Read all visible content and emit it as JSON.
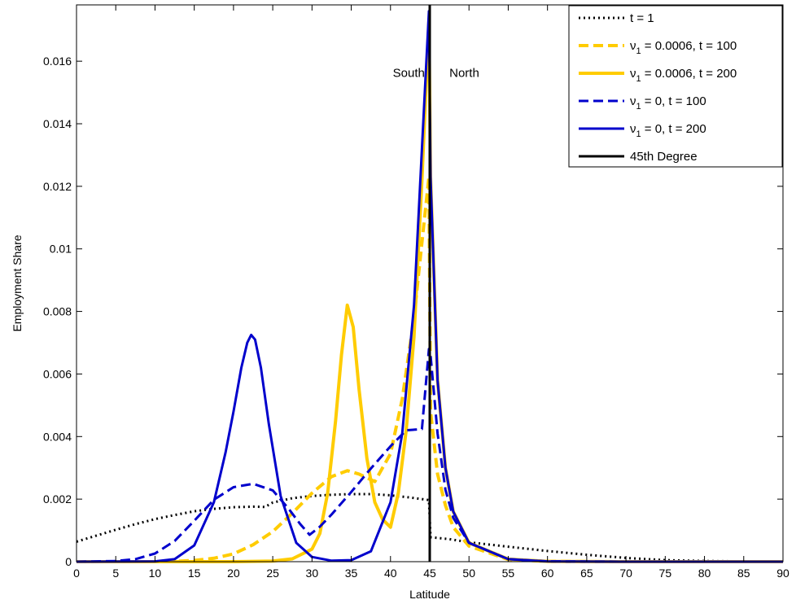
{
  "chart_data": {
    "type": "line",
    "title": "",
    "xlabel": "Latitude",
    "ylabel": "Employment Share",
    "xlim": [
      0,
      90
    ],
    "ylim": [
      0,
      0.0178
    ],
    "xticks": [
      0,
      5,
      10,
      15,
      20,
      25,
      30,
      35,
      40,
      45,
      50,
      55,
      60,
      65,
      70,
      75,
      80,
      85,
      90
    ],
    "yticks": [
      0,
      0.002,
      0.004,
      0.006,
      0.008,
      0.01,
      0.012,
      0.014,
      0.016
    ],
    "ytick_labels": [
      "0",
      "0.002",
      "0.004",
      "0.006",
      "0.008",
      "0.01",
      "0.012",
      "0.014",
      "0.016"
    ],
    "grid": false,
    "legend_position": "top-right",
    "annotations": [
      {
        "text": "South",
        "x": 40.3,
        "y": 0.0155
      },
      {
        "text": "North",
        "x": 47.5,
        "y": 0.0155
      }
    ],
    "vline": {
      "name": "45th Degree",
      "x": 45,
      "color": "#000000",
      "style": "solid"
    },
    "series": [
      {
        "name": "t = 1",
        "color": "#000000",
        "style": "dotted",
        "x": [
          0,
          2.5,
          5,
          7.5,
          10,
          12.5,
          15,
          17.5,
          20,
          22.5,
          24,
          25,
          27.5,
          30,
          32.5,
          35,
          37.5,
          40,
          42.5,
          44.9,
          45.1,
          47.5,
          50,
          55,
          60,
          65,
          70,
          75,
          80,
          85,
          90
        ],
        "y": [
          0.00064,
          0.00083,
          0.00102,
          0.0012,
          0.00136,
          0.00149,
          0.00161,
          0.00169,
          0.00174,
          0.00176,
          0.00175,
          0.00189,
          0.00203,
          0.0021,
          0.00214,
          0.00216,
          0.00216,
          0.00212,
          0.00205,
          0.00197,
          0.00078,
          0.00072,
          0.00062,
          0.00048,
          0.00034,
          0.00022,
          0.00012,
          5e-05,
          2e-05,
          1e-05,
          0
        ]
      },
      {
        "name": "ν₁ = 0.0006, t = 100",
        "color": "#FFCC00",
        "style": "dashed",
        "x": [
          0,
          10,
          12.5,
          15,
          17.5,
          20,
          22.5,
          25,
          27.5,
          30,
          32.5,
          34.5,
          36,
          38,
          40,
          41.5,
          43,
          44,
          44.9,
          45.1,
          46,
          47,
          48,
          50,
          55,
          60,
          70,
          80,
          90
        ],
        "y": [
          0,
          0,
          1e-05,
          4e-05,
          0.00011,
          0.00025,
          0.00054,
          0.00096,
          0.00155,
          0.00219,
          0.00272,
          0.00291,
          0.0028,
          0.00256,
          0.00345,
          0.0052,
          0.0078,
          0.0102,
          0.0123,
          0.0048,
          0.0028,
          0.0018,
          0.0011,
          0.0005,
          7e-05,
          1e-05,
          0,
          0,
          0
        ]
      },
      {
        "name": "ν₁ = 0.0006, t = 200",
        "color": "#FFCC00",
        "style": "solid",
        "x": [
          0,
          15,
          20,
          25,
          27.5,
          30,
          31,
          32,
          33,
          33.75,
          34.5,
          35.25,
          36,
          37,
          38,
          39,
          40,
          41,
          42,
          43,
          44,
          44.9,
          45.1,
          46,
          47,
          48,
          50,
          55,
          60,
          70,
          90
        ],
        "y": [
          0,
          0,
          0,
          2e-05,
          9e-05,
          0.0004,
          0.0009,
          0.0022,
          0.0045,
          0.0066,
          0.0082,
          0.0075,
          0.0055,
          0.0033,
          0.0019,
          0.00135,
          0.0011,
          0.0022,
          0.0042,
          0.0072,
          0.0122,
          0.0173,
          0.0123,
          0.0058,
          0.003,
          0.0016,
          0.0006,
          8e-05,
          1e-05,
          0,
          0
        ]
      },
      {
        "name": "ν₁ = 0, t = 100",
        "color": "#0000CC",
        "style": "dashed",
        "x": [
          0,
          5,
          7.5,
          10,
          12.5,
          15,
          17.5,
          20,
          22.5,
          25,
          27,
          28.5,
          29.7,
          31,
          32.5,
          35,
          37.5,
          40,
          42,
          44,
          44.9,
          45.1,
          46,
          47,
          48,
          50,
          55,
          60,
          70,
          90
        ],
        "y": [
          0,
          2e-05,
          8e-05,
          0.00026,
          0.00066,
          0.00131,
          0.00198,
          0.00238,
          0.00249,
          0.00228,
          0.0017,
          0.0012,
          0.00086,
          0.00112,
          0.00151,
          0.00223,
          0.00298,
          0.00369,
          0.0042,
          0.00424,
          0.0068,
          0.0066,
          0.0041,
          0.0023,
          0.0014,
          0.0006,
          8e-05,
          1e-05,
          0,
          0
        ]
      },
      {
        "name": "ν₁ = 0, t = 200",
        "color": "#0000CC",
        "style": "solid",
        "x": [
          0,
          10,
          12.5,
          15,
          17.5,
          19,
          20,
          21,
          21.75,
          22.25,
          22.75,
          23.5,
          24.5,
          26,
          28,
          30,
          32.5,
          35,
          37.5,
          40,
          41.5,
          43,
          44,
          44.9,
          45.1,
          46,
          47,
          48,
          50,
          55,
          60,
          70,
          90
        ],
        "y": [
          0,
          1e-05,
          8e-05,
          0.00052,
          0.0019,
          0.0035,
          0.0048,
          0.0062,
          0.007,
          0.00725,
          0.0071,
          0.0062,
          0.0044,
          0.0021,
          0.0006,
          0.00015,
          3e-05,
          5e-05,
          0.00033,
          0.0019,
          0.0041,
          0.0082,
          0.0132,
          0.0176,
          0.0123,
          0.0058,
          0.003,
          0.0016,
          0.0006,
          8e-05,
          1e-05,
          0,
          0
        ]
      }
    ]
  }
}
